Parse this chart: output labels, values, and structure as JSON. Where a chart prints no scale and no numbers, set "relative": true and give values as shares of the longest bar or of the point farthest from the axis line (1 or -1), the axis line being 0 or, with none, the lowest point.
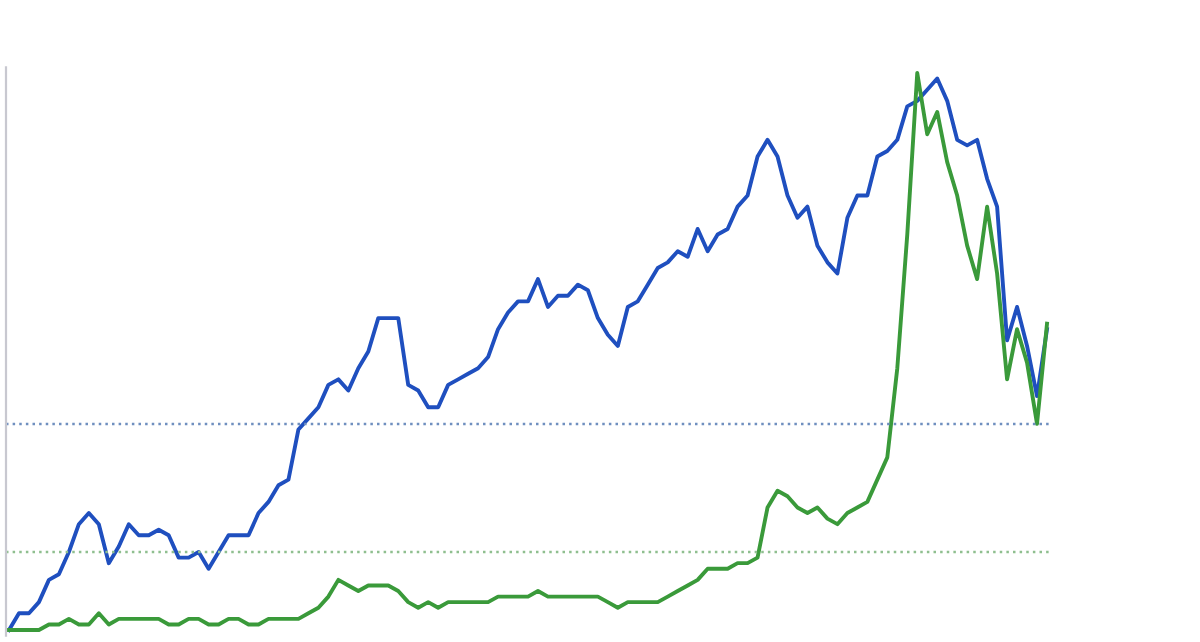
{
  "chart_data": {
    "type": "line",
    "relative": true,
    "categories": [
      null,
      null,
      null,
      null,
      null,
      null,
      null,
      null,
      null,
      null,
      null,
      null,
      null,
      null,
      null,
      null,
      null,
      null,
      null,
      null,
      null,
      null,
      null,
      null,
      null,
      null,
      null,
      null,
      null,
      null,
      null,
      null,
      null,
      null,
      null,
      null,
      null,
      null,
      null,
      null,
      null,
      null,
      null,
      null,
      null,
      null,
      null,
      null,
      null,
      null,
      null,
      null,
      null,
      null,
      null,
      null,
      null,
      null,
      null,
      null,
      null,
      null,
      null,
      null,
      null,
      null,
      null,
      null,
      null,
      null,
      null,
      null,
      null,
      null,
      null,
      null,
      null,
      null,
      null,
      null,
      null,
      null,
      null,
      null,
      null,
      null,
      null,
      null,
      null,
      null,
      null,
      null,
      null,
      null,
      null,
      null,
      null,
      null,
      null,
      null,
      null,
      null,
      null,
      null,
      null
    ],
    "series": [
      {
        "color": "#1f4fbf",
        "values": [
          0.0,
          0.03,
          0.03,
          0.05,
          0.09,
          0.1,
          0.14,
          0.19,
          0.21,
          0.19,
          0.12,
          0.15,
          0.19,
          0.17,
          0.17,
          0.18,
          0.17,
          0.13,
          0.13,
          0.14,
          0.11,
          0.14,
          0.17,
          0.17,
          0.17,
          0.21,
          0.23,
          0.26,
          0.27,
          0.36,
          0.38,
          0.4,
          0.44,
          0.45,
          0.43,
          0.47,
          0.5,
          0.56,
          0.56,
          0.56,
          0.44,
          0.43,
          0.4,
          0.4,
          0.44,
          0.45,
          0.46,
          0.47,
          0.49,
          0.54,
          0.57,
          0.59,
          0.59,
          0.63,
          0.58,
          0.6,
          0.6,
          0.62,
          0.61,
          0.56,
          0.53,
          0.51,
          0.58,
          0.59,
          0.62,
          0.65,
          0.66,
          0.68,
          0.67,
          0.72,
          0.68,
          0.71,
          0.72,
          0.76,
          0.78,
          0.85,
          0.88,
          0.85,
          0.78,
          0.74,
          0.76,
          0.69,
          0.66,
          0.64,
          0.74,
          0.78,
          0.78,
          0.85,
          0.86,
          0.88,
          0.94,
          0.95,
          0.97,
          0.99,
          0.95,
          0.88,
          0.87,
          0.88,
          0.81,
          0.76,
          0.52,
          0.58,
          0.51,
          0.42,
          0.54
        ]
      },
      {
        "color": "#3a9a3a",
        "values": [
          0.0,
          0.0,
          0.0,
          0.0,
          0.01,
          0.01,
          0.02,
          0.01,
          0.01,
          0.03,
          0.01,
          0.02,
          0.02,
          0.02,
          0.02,
          0.02,
          0.01,
          0.01,
          0.02,
          0.02,
          0.01,
          0.01,
          0.02,
          0.02,
          0.01,
          0.01,
          0.02,
          0.02,
          0.02,
          0.02,
          0.03,
          0.04,
          0.06,
          0.09,
          0.08,
          0.07,
          0.08,
          0.08,
          0.08,
          0.07,
          0.05,
          0.04,
          0.05,
          0.04,
          0.05,
          0.05,
          0.05,
          0.05,
          0.05,
          0.06,
          0.06,
          0.06,
          0.06,
          0.07,
          0.06,
          0.06,
          0.06,
          0.06,
          0.06,
          0.06,
          0.05,
          0.04,
          0.05,
          0.05,
          0.05,
          0.05,
          0.06,
          0.07,
          0.08,
          0.09,
          0.11,
          0.11,
          0.11,
          0.12,
          0.12,
          0.13,
          0.22,
          0.25,
          0.24,
          0.22,
          0.21,
          0.22,
          0.2,
          0.19,
          0.21,
          0.22,
          0.23,
          0.27,
          0.31,
          0.47,
          0.71,
          1.0,
          0.89,
          0.93,
          0.84,
          0.78,
          0.69,
          0.63,
          0.76,
          0.64,
          0.45,
          0.54,
          0.48,
          0.37,
          0.55
        ]
      }
    ],
    "ref_lines": [
      {
        "axis": "y",
        "value": 0.37,
        "color": "#6f8fbf",
        "line_style": "dotted"
      },
      {
        "axis": "y",
        "value": 0.14,
        "color": "#8fbf8f",
        "line_style": "dotted"
      }
    ],
    "line_style": "solid",
    "marker": "none"
  }
}
